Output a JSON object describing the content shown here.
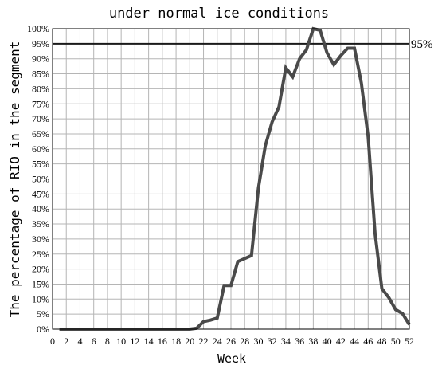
{
  "chart_data": {
    "type": "line",
    "title": "under normal ice conditions",
    "xlabel": "Week",
    "ylabel": "The percentage of RIO in the segment",
    "xlim": [
      0,
      52
    ],
    "ylim": [
      0,
      100
    ],
    "x_ticks": [
      "0",
      "2",
      "4",
      "6",
      "8",
      "10",
      "12",
      "14",
      "16",
      "18",
      "20",
      "22",
      "24",
      "26",
      "28",
      "30",
      "32",
      "34",
      "36",
      "38",
      "40",
      "42",
      "44",
      "46",
      "48",
      "50",
      "52"
    ],
    "y_ticks": [
      "0%",
      "5%",
      "10%",
      "15%",
      "20%",
      "25%",
      "30%",
      "35%",
      "40%",
      "45%",
      "50%",
      "55%",
      "60%",
      "65%",
      "70%",
      "75%",
      "80%",
      "85%",
      "90%",
      "95%",
      "100%"
    ],
    "grid": true,
    "reference_line": {
      "value": 95,
      "label": "95%"
    },
    "series": [
      {
        "color": "#4a4a4a",
        "x": [
          1,
          2,
          3,
          4,
          5,
          6,
          7,
          8,
          9,
          10,
          11,
          12,
          13,
          14,
          15,
          16,
          17,
          18,
          19,
          20,
          21,
          22,
          23,
          24,
          25,
          26,
          27,
          28,
          29,
          30,
          31,
          32,
          33,
          34,
          35,
          36,
          37,
          38,
          39,
          40,
          41,
          42,
          43,
          44,
          45,
          46,
          47,
          48,
          49,
          50,
          51,
          52
        ],
        "y": [
          0,
          0,
          0,
          0,
          0,
          0,
          0,
          0,
          0,
          0,
          0,
          0,
          0,
          0,
          0,
          0,
          0,
          0,
          0,
          0,
          0.3,
          2.5,
          3,
          3.7,
          14.5,
          14.5,
          22.5,
          23.5,
          24.5,
          47,
          61,
          69,
          74,
          87,
          84,
          90,
          93,
          100,
          99.5,
          92,
          88,
          91,
          93.5,
          93.5,
          82,
          64,
          32,
          13.5,
          10.5,
          6.5,
          5.2,
          1.5
        ]
      }
    ]
  }
}
